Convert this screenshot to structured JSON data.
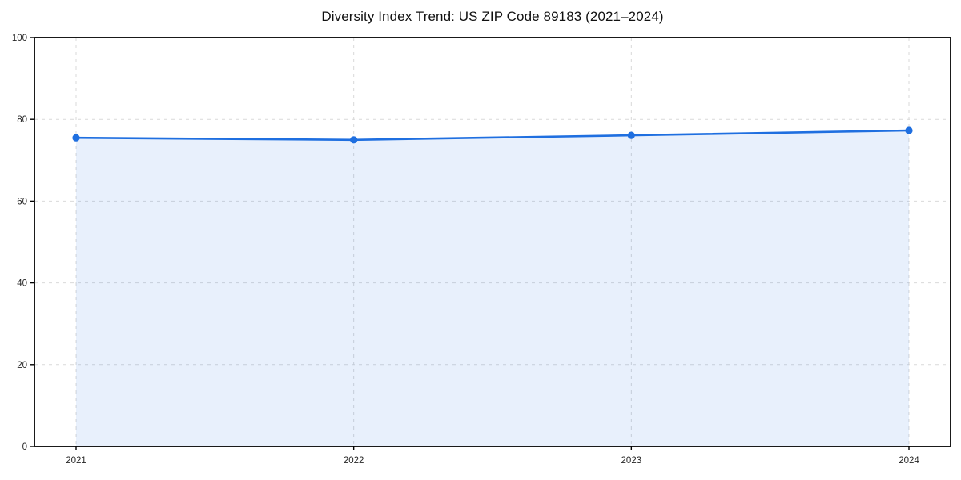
{
  "chart_data": {
    "type": "line",
    "title": "Diversity Index Trend: US ZIP Code 89183 (2021–2024)",
    "x": [
      2021,
      2022,
      2023,
      2024
    ],
    "xticks": [
      2021,
      2022,
      2023,
      2024
    ],
    "xtick_labels": [
      "2021",
      "2022",
      "2023",
      "2024"
    ],
    "series": [
      {
        "name": "Diversity Index",
        "values": [
          75.5,
          75.0,
          76.1,
          77.3
        ]
      }
    ],
    "xlabel": "",
    "ylabel": "",
    "ylim": [
      0,
      100
    ],
    "yticks": [
      0,
      20,
      40,
      60,
      80,
      100
    ],
    "x_margin": 0.05,
    "grid": true,
    "grid_style": "dashed",
    "area_fill": true,
    "legend": "none",
    "colors": {
      "line": "#1f6fe0",
      "marker": "#1f6fe0",
      "area_fill": "rgba(31,111,224,0.10)",
      "grid": "#d9d9d9",
      "axis": "#000000",
      "tick_label": "#262626",
      "title": "#111111",
      "background": "#ffffff"
    }
  }
}
